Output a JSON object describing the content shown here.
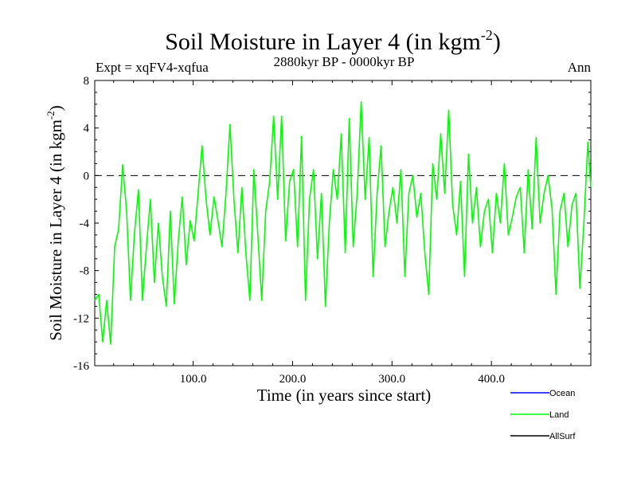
{
  "chart_data": {
    "type": "line",
    "title": "Soil Moisture in Layer 4 (in kgm",
    "title_sup": "-2",
    "title_close": ")",
    "subtitle_left": "Expt = xqFV4-xqfua",
    "subtitle_center": "2880kyr BP - 0000kyr BP",
    "subtitle_right": "Ann",
    "xlabel": "Time (in years since start)",
    "ylabel": "Soil Moisture in Layer 4 (in kgm",
    "ylabel_sup": "-2",
    "ylabel_close": ")",
    "xlim": [
      1,
      500
    ],
    "ylim": [
      -16,
      8
    ],
    "xticks": [
      100,
      200,
      300,
      400
    ],
    "xtick_labels": [
      "100.0",
      "200.0",
      "300.0",
      "400.0"
    ],
    "yticks": [
      8,
      4,
      0,
      -4,
      -8,
      -12,
      -16
    ],
    "ytick_labels": [
      "8",
      "4",
      "0",
      "-4",
      "-8",
      "-12",
      "-16"
    ],
    "zero_line": 0,
    "legend": [
      {
        "name": "Ocean",
        "color": "#0000ff"
      },
      {
        "name": "Land",
        "color": "#00ff00"
      },
      {
        "name": "AllSurf",
        "color": "#000000"
      }
    ],
    "series": [
      {
        "name": "Land",
        "color": "#00ff00",
        "x": [
          1,
          5,
          9,
          13,
          17,
          21,
          25,
          29,
          33,
          37,
          41,
          45,
          49,
          53,
          57,
          61,
          65,
          69,
          73,
          77,
          81,
          85,
          89,
          93,
          97,
          101,
          105,
          109,
          113,
          117,
          121,
          125,
          129,
          133,
          137,
          141,
          145,
          149,
          153,
          157,
          161,
          165,
          169,
          173,
          177,
          181,
          185,
          189,
          193,
          197,
          201,
          205,
          209,
          213,
          217,
          221,
          225,
          229,
          233,
          237,
          241,
          245,
          249,
          253,
          257,
          261,
          265,
          269,
          273,
          277,
          281,
          285,
          289,
          293,
          297,
          301,
          305,
          309,
          313,
          317,
          321,
          325,
          329,
          333,
          337,
          341,
          345,
          349,
          353,
          357,
          361,
          365,
          369,
          373,
          377,
          381,
          385,
          389,
          393,
          397,
          401,
          405,
          409,
          413,
          417,
          421,
          425,
          429,
          433,
          437,
          441,
          445,
          449,
          453,
          457,
          461,
          465,
          469,
          473,
          477,
          481,
          485,
          489,
          493,
          497,
          500
        ],
        "values": [
          -10.5,
          -10,
          -14,
          -10.5,
          -14.2,
          -6,
          -4.5,
          0.9,
          -3,
          -10.5,
          -4.8,
          -1.2,
          -10.5,
          -6,
          -2,
          -9,
          -4,
          -8.5,
          -11,
          -3,
          -10.8,
          -5.5,
          -1.8,
          -7.5,
          -3.8,
          -5.5,
          -1.5,
          2.5,
          -2,
          -5,
          -1.8,
          -3.8,
          -6,
          -1.5,
          4.3,
          -2,
          -6.5,
          -1,
          -6.5,
          -10.5,
          0.5,
          -5,
          -10.5,
          -3,
          -0.5,
          5,
          -2,
          5,
          -5.5,
          -0.5,
          0.5,
          -6,
          3.3,
          -10.5,
          -2,
          0.5,
          -7,
          -1.5,
          -11,
          -4,
          0.5,
          -2,
          3.5,
          -6.5,
          4.8,
          -6,
          -1.5,
          6.2,
          -2,
          3.2,
          -8.5,
          -1.5,
          2.5,
          -6,
          -3,
          -1,
          -4,
          0.5,
          -8.5,
          -1.5,
          0,
          -3.5,
          -1.5,
          -6.5,
          -10,
          1,
          -2,
          3.5,
          -1.5,
          5.5,
          -2.5,
          -5,
          -0.5,
          -8.5,
          1.8,
          -4,
          -1,
          -6,
          -3,
          -2,
          -6.5,
          -1.5,
          -4,
          1,
          -5,
          -3.5,
          -1.8,
          -1,
          -6.5,
          0.5,
          -4.5,
          3.2,
          -4,
          -1.5,
          0,
          -2.8,
          -10,
          -3,
          -1.5,
          -6,
          -2.5,
          -1.5,
          -9.5,
          -4,
          2.8,
          -1
        ]
      }
    ]
  }
}
